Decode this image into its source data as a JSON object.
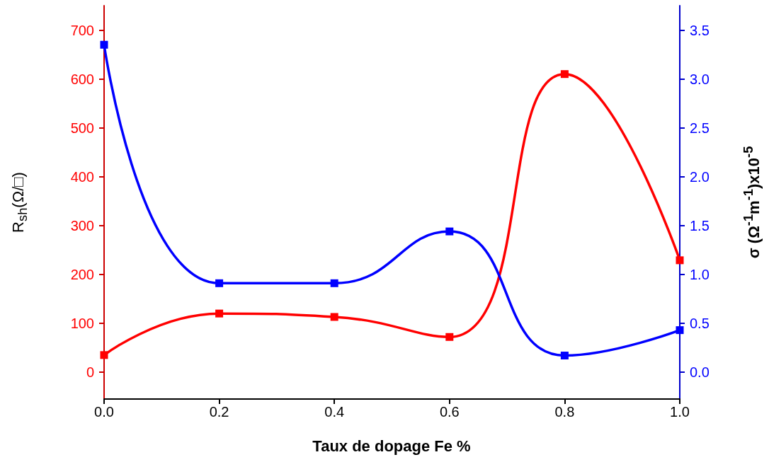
{
  "chart_data": {
    "type": "line",
    "xlabel": "Taux de dopage Fe %",
    "ylabel": "R$_{sh}$(Ω/□)",
    "y2label": "σ (Ω$^{-1}$m$^{-1}$)x10$^{-5}$",
    "x": [
      0,
      0.2,
      0.4,
      0.6,
      0.8,
      1.0
    ],
    "series": [
      {
        "color": "#ff0000",
        "values": [
          35,
          120,
          113,
          72,
          610,
          229
        ]
      },
      {
        "color": "#0000ff",
        "axis": "y2",
        "values": [
          3.35,
          0.91,
          0.91,
          1.44,
          0.17,
          0.43
        ]
      }
    ],
    "xlim": [
      0,
      1
    ],
    "xticks": [
      {
        "value": 0,
        "label": "0.0"
      },
      0.2,
      0.4,
      0.6,
      0.8,
      {
        "value": 1,
        "label": "1.0"
      }
    ],
    "ylim": [
      -55,
      750
    ],
    "yticks": [
      0,
      100,
      200,
      300,
      400,
      500,
      600,
      700
    ],
    "y2lim": [
      -0.275,
      3.75
    ],
    "y2ticks": [
      {
        "value": 0,
        "label": "0.0"
      },
      0.5,
      {
        "value": 1,
        "label": "1.0"
      },
      1.5,
      {
        "value": 2,
        "label": "2.0"
      },
      2.5,
      {
        "value": 3,
        "label": "3.0"
      },
      3.5
    ],
    "marker": "square",
    "line_style": "solid"
  }
}
